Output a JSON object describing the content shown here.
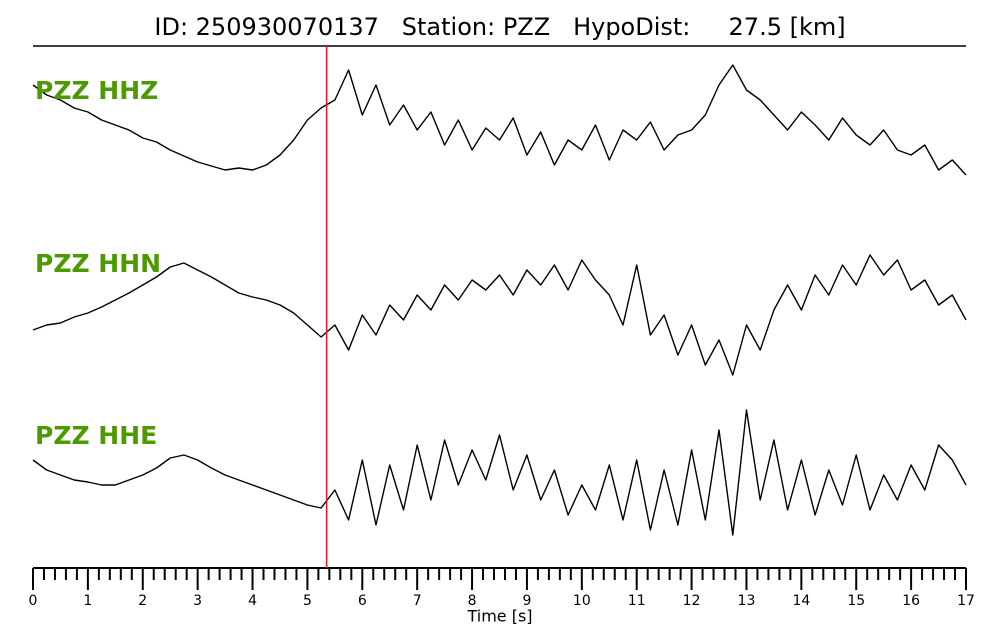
{
  "chart_data": {
    "type": "line",
    "title": "ID: 250930070137   Station: PZZ   HypoDist:     27.5 [km]",
    "x_label": "Time [s]",
    "x": [
      0,
      0.25,
      0.5,
      0.75,
      1,
      1.25,
      1.5,
      1.75,
      2,
      2.25,
      2.5,
      2.75,
      3,
      3.25,
      3.5,
      3.75,
      4,
      4.25,
      4.5,
      4.75,
      5,
      5.25,
      5.5,
      5.75,
      6,
      6.25,
      6.5,
      6.75,
      7,
      7.25,
      7.5,
      7.75,
      8,
      8.25,
      8.5,
      8.75,
      9,
      9.25,
      9.5,
      9.75,
      10,
      10.25,
      10.5,
      10.75,
      11,
      11.25,
      11.5,
      11.75,
      12,
      12.25,
      12.5,
      12.75,
      13,
      13.25,
      13.5,
      13.75,
      14,
      14.25,
      14.5,
      14.75,
      15,
      15.25,
      15.5,
      15.75,
      16,
      16.25,
      16.5,
      16.75,
      17
    ],
    "series": [
      {
        "name": "PZZ HHZ",
        "color": "#000000",
        "values": [
          45,
          35,
          30,
          22,
          18,
          10,
          5,
          0,
          -8,
          -12,
          -20,
          -26,
          -32,
          -36,
          -40,
          -38,
          -40,
          -35,
          -25,
          -10,
          10,
          22,
          30,
          60,
          15,
          45,
          5,
          25,
          0,
          18,
          -15,
          10,
          -20,
          2,
          -10,
          12,
          -25,
          -2,
          -35,
          -10,
          -20,
          5,
          -30,
          0,
          -10,
          8,
          -20,
          -5,
          0,
          15,
          45,
          65,
          40,
          30,
          15,
          0,
          18,
          5,
          -10,
          12,
          -5,
          -15,
          0,
          -20,
          -25,
          -15,
          -40,
          -30,
          -45
        ]
      },
      {
        "name": "PZZ HHN",
        "color": "#000000",
        "values": [
          -25,
          -20,
          -18,
          -12,
          -8,
          -2,
          5,
          12,
          20,
          28,
          38,
          42,
          35,
          28,
          20,
          12,
          8,
          5,
          0,
          -8,
          -20,
          -32,
          -20,
          -45,
          -10,
          -30,
          0,
          -15,
          10,
          -5,
          20,
          5,
          25,
          15,
          30,
          10,
          35,
          20,
          40,
          15,
          45,
          25,
          10,
          -20,
          40,
          -30,
          -10,
          -50,
          -20,
          -60,
          -35,
          -70,
          -20,
          -45,
          -5,
          20,
          -5,
          30,
          10,
          40,
          20,
          50,
          30,
          45,
          15,
          25,
          0,
          10,
          -15
        ]
      },
      {
        "name": "PZZ HHE",
        "color": "#000000",
        "values": [
          20,
          10,
          5,
          0,
          -2,
          -5,
          -5,
          0,
          5,
          12,
          22,
          25,
          20,
          12,
          5,
          0,
          -5,
          -10,
          -15,
          -20,
          -25,
          -28,
          -10,
          -40,
          20,
          -45,
          15,
          -30,
          35,
          -20,
          40,
          -5,
          30,
          0,
          45,
          -10,
          25,
          -20,
          10,
          -35,
          -5,
          -30,
          15,
          -40,
          20,
          -50,
          10,
          -45,
          30,
          -40,
          50,
          -55,
          70,
          -20,
          40,
          -30,
          20,
          -35,
          10,
          -25,
          25,
          -30,
          5,
          -20,
          15,
          -10,
          35,
          20,
          -5
        ]
      }
    ],
    "label_color": "#4c9a00",
    "ylim": [
      -80,
      80
    ],
    "xlim": [
      0,
      17
    ],
    "xticks": [
      0,
      1,
      2,
      3,
      4,
      5,
      6,
      7,
      8,
      9,
      10,
      11,
      12,
      13,
      14,
      15,
      16,
      17
    ],
    "xminorticks": [
      0.2,
      0.4,
      0.6,
      0.8,
      1.2,
      1.4,
      1.6,
      1.8,
      2.2,
      2.4,
      2.6,
      2.8,
      3.2,
      3.4,
      3.6,
      3.8,
      4.2,
      4.4,
      4.6,
      4.8,
      5.2,
      5.4,
      5.6,
      5.8,
      6.2,
      6.4,
      6.6,
      6.8,
      7.2,
      7.4,
      7.6,
      7.8,
      8.2,
      8.4,
      8.6,
      8.8,
      9.2,
      9.4,
      9.6,
      9.8,
      10.2,
      10.4,
      10.6,
      10.8,
      11.2,
      11.4,
      11.6,
      11.8,
      12.2,
      12.4,
      12.6,
      12.8,
      13.2,
      13.4,
      13.6,
      13.8,
      14.2,
      14.4,
      14.6,
      14.8,
      15.2,
      15.4,
      15.6,
      15.8,
      16.2,
      16.4,
      16.6,
      16.8
    ],
    "pick": {
      "x": 5.35,
      "color": "#e41a1c"
    }
  }
}
